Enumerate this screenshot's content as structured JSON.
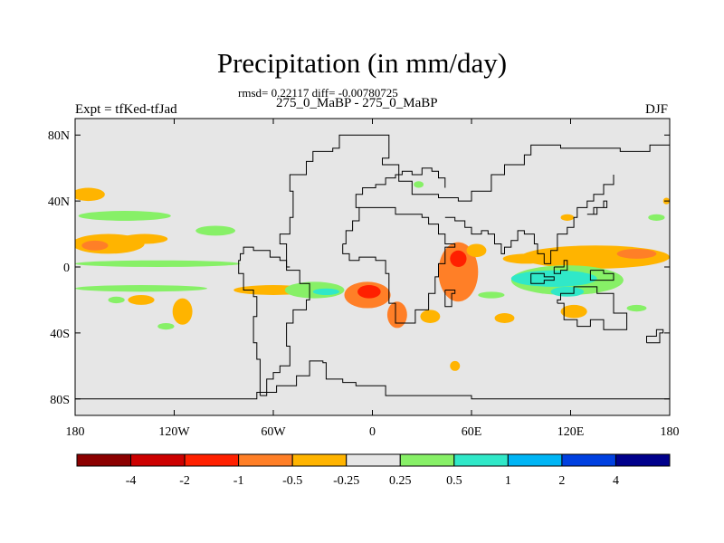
{
  "chart_data": {
    "type": "heatmap",
    "title": "Precipitation (in mm/day)",
    "stats": "rmsd= 0.22117 diff= -0.00780725",
    "left_label": "Expt = tfKed-tfJad",
    "center_label": "275_0_MaBP - 275_0_MaBP",
    "right_label": "DJF",
    "xlim": [
      -180,
      180
    ],
    "ylim": [
      -90,
      90
    ],
    "x_ticks": [
      {
        "value": -180,
        "label": "180"
      },
      {
        "value": -120,
        "label": "120W"
      },
      {
        "value": -60,
        "label": "60W"
      },
      {
        "value": 0,
        "label": "0"
      },
      {
        "value": 60,
        "label": "60E"
      },
      {
        "value": 120,
        "label": "120E"
      },
      {
        "value": 180,
        "label": "180"
      }
    ],
    "y_ticks": [
      {
        "value": 80,
        "label": "80N"
      },
      {
        "value": 40,
        "label": "40N"
      },
      {
        "value": 0,
        "label": "0"
      },
      {
        "value": -40,
        "label": "40S"
      },
      {
        "value": -80,
        "label": "80S"
      }
    ],
    "colorbar": {
      "colors": [
        "#8b0000",
        "#cc0000",
        "#ff2000",
        "#ff7f27",
        "#ffb400",
        "#e6e6e6",
        "#87f067",
        "#30e8c8",
        "#00b5f5",
        "#0040e0",
        "#00008b"
      ],
      "labels": [
        "-4",
        "-2",
        "-1",
        "-0.5",
        "-0.25",
        "0.25",
        "0.5",
        "1",
        "2",
        "4"
      ]
    },
    "background_color": "#e6e6e6",
    "anomaly_regions": [
      {
        "level": 4,
        "lon": -172,
        "lat": 44,
        "dlon": 10,
        "dlat": 4
      },
      {
        "level": 6,
        "lon": -150,
        "lat": 31,
        "dlon": 28,
        "dlat": 3
      },
      {
        "level": 4,
        "lon": -160,
        "lat": 14,
        "dlon": 22,
        "dlat": 6
      },
      {
        "level": 3,
        "lon": -168,
        "lat": 13,
        "dlon": 8,
        "dlat": 3
      },
      {
        "level": 4,
        "lon": -138,
        "lat": 17,
        "dlon": 14,
        "dlat": 3
      },
      {
        "level": 6,
        "lon": -95,
        "lat": 22,
        "dlon": 12,
        "dlat": 3
      },
      {
        "level": 6,
        "lon": -130,
        "lat": 2,
        "dlon": 50,
        "dlat": 2
      },
      {
        "level": 6,
        "lon": -140,
        "lat": -13,
        "dlon": 40,
        "dlat": 2
      },
      {
        "level": 4,
        "lon": -60,
        "lat": -14,
        "dlon": 24,
        "dlat": 3
      },
      {
        "level": 4,
        "lon": -115,
        "lat": -27,
        "dlon": 6,
        "dlat": 8
      },
      {
        "level": 4,
        "lon": -140,
        "lat": -20,
        "dlon": 8,
        "dlat": 3
      },
      {
        "level": 6,
        "lon": -35,
        "lat": -14,
        "dlon": 18,
        "dlat": 5
      },
      {
        "level": 7,
        "lon": -28,
        "lat": -15,
        "dlon": 8,
        "dlat": 2
      },
      {
        "level": 3,
        "lon": -3,
        "lat": -17,
        "dlon": 14,
        "dlat": 8
      },
      {
        "level": 2,
        "lon": -2,
        "lat": -15,
        "dlon": 7,
        "dlat": 4
      },
      {
        "level": 3,
        "lon": 15,
        "lat": -29,
        "dlon": 6,
        "dlat": 8
      },
      {
        "level": 4,
        "lon": 35,
        "lat": -30,
        "dlon": 6,
        "dlat": 4
      },
      {
        "level": 3,
        "lon": 52,
        "lat": -3,
        "dlon": 12,
        "dlat": 18
      },
      {
        "level": 2,
        "lon": 52,
        "lat": 5,
        "dlon": 5,
        "dlat": 5
      },
      {
        "level": 4,
        "lon": 63,
        "lat": 10,
        "dlon": 6,
        "dlat": 4
      },
      {
        "level": 6,
        "lon": 28,
        "lat": 50,
        "dlon": 3,
        "dlat": 2
      },
      {
        "level": 6,
        "lon": 72,
        "lat": -17,
        "dlon": 8,
        "dlat": 2
      },
      {
        "level": 4,
        "lon": 80,
        "lat": -31,
        "dlon": 6,
        "dlat": 3
      },
      {
        "level": 4,
        "lon": 93,
        "lat": 5,
        "dlon": 14,
        "dlat": 3
      },
      {
        "level": 4,
        "lon": 135,
        "lat": 6,
        "dlon": 45,
        "dlat": 7
      },
      {
        "level": 3,
        "lon": 160,
        "lat": 8,
        "dlon": 12,
        "dlat": 3
      },
      {
        "level": 6,
        "lon": 118,
        "lat": -8,
        "dlon": 34,
        "dlat": 9
      },
      {
        "level": 7,
        "lon": 110,
        "lat": -7,
        "dlon": 26,
        "dlat": 5
      },
      {
        "level": 7,
        "lon": 118,
        "lat": -15,
        "dlon": 10,
        "dlat": 3
      },
      {
        "level": 4,
        "lon": 122,
        "lat": -27,
        "dlon": 8,
        "dlat": 4
      },
      {
        "level": 6,
        "lon": 160,
        "lat": -25,
        "dlon": 6,
        "dlat": 2
      },
      {
        "level": 6,
        "lon": 172,
        "lat": 30,
        "dlon": 5,
        "dlat": 2
      },
      {
        "level": 4,
        "lon": 178,
        "lat": 40,
        "dlon": 2,
        "dlat": 2
      },
      {
        "level": 4,
        "lon": 118,
        "lat": 30,
        "dlon": 4,
        "dlat": 2
      },
      {
        "level": 6,
        "lon": -125,
        "lat": -36,
        "dlon": 5,
        "dlat": 2
      },
      {
        "level": 6,
        "lon": -155,
        "lat": -20,
        "dlon": 5,
        "dlat": 2
      },
      {
        "level": 4,
        "lon": 50,
        "lat": -60,
        "dlon": 3,
        "dlat": 3
      }
    ],
    "coastlines": [
      [
        [
          -180,
          -80
        ],
        [
          -72,
          -80
        ],
        [
          -70,
          -76
        ],
        [
          -60,
          -76
        ],
        [
          -58,
          -72
        ],
        [
          -50,
          -72
        ],
        [
          -46,
          -66
        ],
        [
          -38,
          -57
        ],
        [
          -30,
          -58
        ],
        [
          -28,
          -68
        ],
        [
          -18,
          -70
        ],
        [
          -10,
          -72
        ],
        [
          8,
          -74
        ],
        [
          8,
          -78
        ],
        [
          58,
          -78
        ],
        [
          60,
          -80
        ],
        [
          180,
          -80
        ]
      ],
      [
        [
          -68,
          -78
        ],
        [
          -64,
          -68
        ],
        [
          -60,
          -64
        ],
        [
          -56,
          -60
        ],
        [
          -50,
          -48
        ],
        [
          -52,
          -34
        ],
        [
          -48,
          -26
        ],
        [
          -40,
          -20
        ],
        [
          -38,
          -10
        ],
        [
          -44,
          -2
        ],
        [
          -50,
          -2
        ],
        [
          -52,
          4
        ],
        [
          -56,
          6
        ],
        [
          -62,
          10
        ],
        [
          -72,
          12
        ],
        [
          -78,
          8
        ],
        [
          -80,
          4
        ],
        [
          -81,
          -4
        ],
        [
          -78,
          -14
        ],
        [
          -72,
          -18
        ],
        [
          -70,
          -30
        ],
        [
          -72,
          -46
        ],
        [
          -70,
          -56
        ],
        [
          -68,
          -78
        ]
      ],
      [
        [
          -50,
          0
        ],
        [
          -52,
          14
        ],
        [
          -56,
          20
        ],
        [
          -50,
          30
        ],
        [
          -48,
          46
        ],
        [
          -50,
          56
        ],
        [
          -40,
          64
        ],
        [
          -36,
          70
        ],
        [
          -24,
          72
        ],
        [
          -20,
          80
        ],
        [
          2,
          80
        ],
        [
          10,
          66
        ],
        [
          6,
          62
        ],
        [
          16,
          52
        ],
        [
          24,
          44
        ],
        [
          40,
          42
        ],
        [
          52,
          40
        ],
        [
          60,
          46
        ],
        [
          72,
          56
        ],
        [
          80,
          62
        ],
        [
          92,
          68
        ],
        [
          96,
          74
        ],
        [
          114,
          72
        ],
        [
          150,
          70
        ],
        [
          168,
          74
        ],
        [
          180,
          68
        ]
      ],
      [
        [
          -8,
          36
        ],
        [
          -10,
          44
        ],
        [
          -6,
          48
        ],
        [
          2,
          50
        ],
        [
          8,
          54
        ],
        [
          14,
          56
        ],
        [
          18,
          58
        ],
        [
          24,
          56
        ],
        [
          30,
          60
        ],
        [
          36,
          58
        ],
        [
          40,
          54
        ],
        [
          44,
          48
        ]
      ],
      [
        [
          -18,
          14
        ],
        [
          -16,
          22
        ],
        [
          -12,
          28
        ],
        [
          -8,
          36
        ],
        [
          4,
          36
        ],
        [
          14,
          32
        ],
        [
          24,
          32
        ],
        [
          30,
          30
        ],
        [
          34,
          26
        ],
        [
          40,
          20
        ],
        [
          44,
          14
        ],
        [
          50,
          12
        ],
        [
          44,
          2
        ],
        [
          40,
          -6
        ],
        [
          38,
          -16
        ],
        [
          34,
          -26
        ],
        [
          26,
          -34
        ],
        [
          18,
          -34
        ],
        [
          14,
          -22
        ],
        [
          10,
          -4
        ],
        [
          8,
          4
        ],
        [
          2,
          6
        ],
        [
          -8,
          4
        ],
        [
          -14,
          8
        ],
        [
          -18,
          14
        ]
      ],
      [
        [
          44,
          30
        ],
        [
          50,
          28
        ],
        [
          56,
          24
        ],
        [
          60,
          20
        ],
        [
          66,
          22
        ],
        [
          70,
          20
        ],
        [
          74,
          14
        ],
        [
          78,
          8
        ],
        [
          80,
          12
        ],
        [
          84,
          16
        ],
        [
          88,
          22
        ],
        [
          92,
          20
        ],
        [
          98,
          14
        ],
        [
          100,
          8
        ],
        [
          104,
          2
        ]
      ],
      [
        [
          104,
          2
        ],
        [
          108,
          10
        ],
        [
          112,
          20
        ],
        [
          118,
          24
        ],
        [
          122,
          30
        ],
        [
          124,
          36
        ],
        [
          130,
          40
        ],
        [
          134,
          44
        ],
        [
          140,
          50
        ],
        [
          146,
          56
        ]
      ],
      [
        [
          112,
          -22
        ],
        [
          116,
          -32
        ],
        [
          124,
          -36
        ],
        [
          132,
          -32
        ],
        [
          140,
          -38
        ],
        [
          150,
          -38
        ],
        [
          154,
          -28
        ],
        [
          146,
          -16
        ],
        [
          136,
          -12
        ],
        [
          130,
          -12
        ],
        [
          122,
          -16
        ],
        [
          114,
          -20
        ],
        [
          112,
          -22
        ]
      ],
      [
        [
          96,
          -4
        ],
        [
          104,
          -6
        ],
        [
          110,
          -8
        ],
        [
          104,
          -10
        ],
        [
          96,
          -4
        ]
      ],
      [
        [
          110,
          0
        ],
        [
          116,
          4
        ],
        [
          118,
          -2
        ],
        [
          114,
          -4
        ],
        [
          110,
          0
        ]
      ],
      [
        [
          132,
          -2
        ],
        [
          140,
          -4
        ],
        [
          146,
          -8
        ],
        [
          140,
          -8
        ],
        [
          132,
          -2
        ]
      ],
      [
        [
          166,
          -46
        ],
        [
          174,
          -40
        ],
        [
          176,
          -38
        ],
        [
          172,
          -42
        ],
        [
          166,
          -46
        ]
      ],
      [
        [
          130,
          32
        ],
        [
          136,
          36
        ],
        [
          142,
          40
        ],
        [
          140,
          36
        ],
        [
          134,
          32
        ],
        [
          130,
          32
        ]
      ],
      [
        [
          44,
          -14
        ],
        [
          50,
          -16
        ],
        [
          48,
          -24
        ],
        [
          44,
          -24
        ],
        [
          44,
          -14
        ]
      ]
    ]
  }
}
